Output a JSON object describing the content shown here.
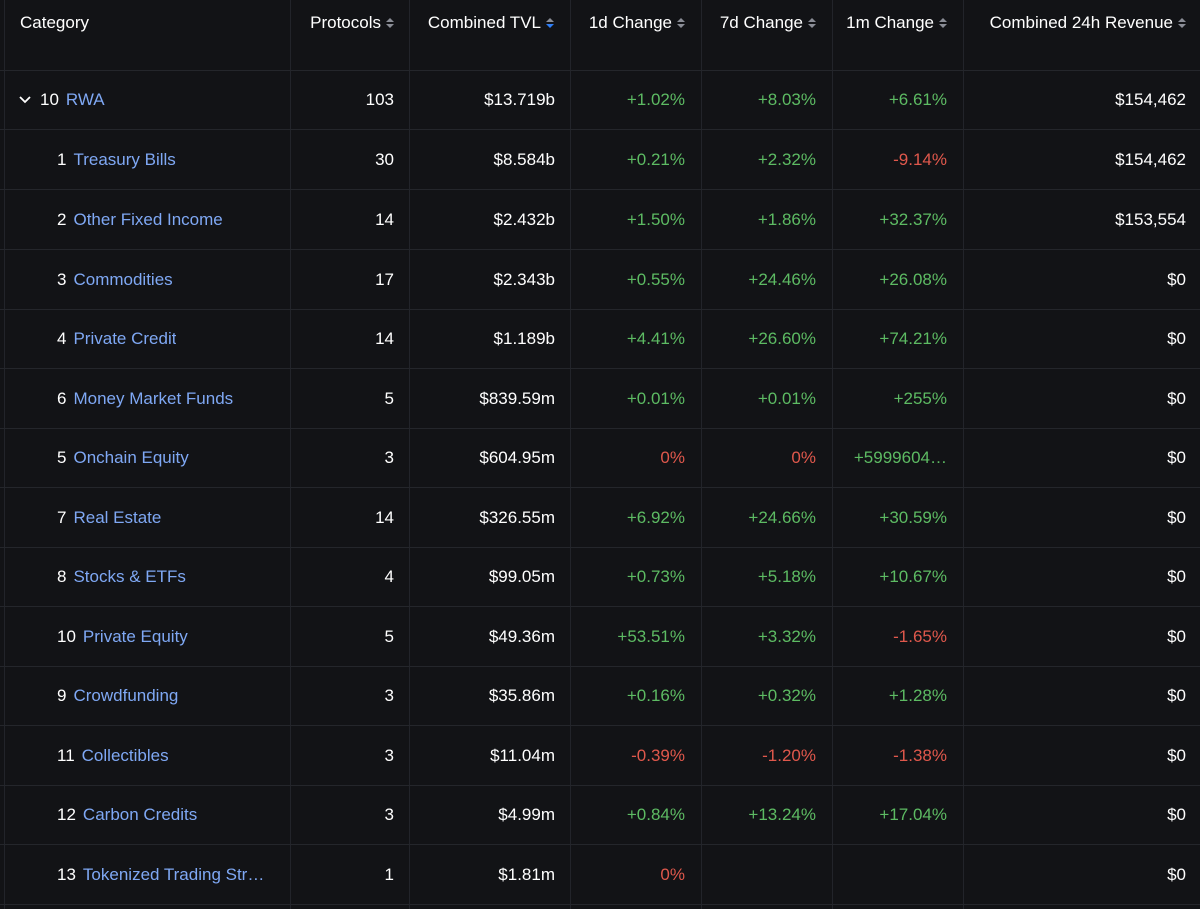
{
  "header": {
    "category": "Category",
    "protocols": "Protocols",
    "tvl": "Combined TVL",
    "d1": "1d Change",
    "d7": "7d Change",
    "m1": "1m Change",
    "revenue": "Combined 24h Revenue"
  },
  "parent": {
    "rank": "10",
    "name": "RWA",
    "protocols": "103",
    "tvl": "$13.719b",
    "d1": "+1.02%",
    "d7": "+8.03%",
    "m1": "+6.61%",
    "revenue": "$154,462"
  },
  "rows": [
    {
      "rank": "1",
      "name": "Treasury Bills",
      "protocols": "30",
      "tvl": "$8.584b",
      "d1": "+0.21%",
      "d7": "+2.32%",
      "m1": "-9.14%",
      "revenue": "$154,462"
    },
    {
      "rank": "2",
      "name": "Other Fixed Income",
      "protocols": "14",
      "tvl": "$2.432b",
      "d1": "+1.50%",
      "d7": "+1.86%",
      "m1": "+32.37%",
      "revenue": "$153,554"
    },
    {
      "rank": "3",
      "name": "Commodities",
      "protocols": "17",
      "tvl": "$2.343b",
      "d1": "+0.55%",
      "d7": "+24.46%",
      "m1": "+26.08%",
      "revenue": "$0"
    },
    {
      "rank": "4",
      "name": "Private Credit",
      "protocols": "14",
      "tvl": "$1.189b",
      "d1": "+4.41%",
      "d7": "+26.60%",
      "m1": "+74.21%",
      "revenue": "$0"
    },
    {
      "rank": "6",
      "name": "Money Market Funds",
      "protocols": "5",
      "tvl": "$839.59m",
      "d1": "+0.01%",
      "d7": "+0.01%",
      "m1": "+255%",
      "revenue": "$0"
    },
    {
      "rank": "5",
      "name": "Onchain Equity",
      "protocols": "3",
      "tvl": "$604.95m",
      "d1": "0%",
      "d7": "0%",
      "m1": "+5999604…",
      "revenue": "$0"
    },
    {
      "rank": "7",
      "name": "Real Estate",
      "protocols": "14",
      "tvl": "$326.55m",
      "d1": "+6.92%",
      "d7": "+24.66%",
      "m1": "+30.59%",
      "revenue": "$0"
    },
    {
      "rank": "8",
      "name": "Stocks & ETFs",
      "protocols": "4",
      "tvl": "$99.05m",
      "d1": "+0.73%",
      "d7": "+5.18%",
      "m1": "+10.67%",
      "revenue": "$0"
    },
    {
      "rank": "10",
      "name": "Private Equity",
      "protocols": "5",
      "tvl": "$49.36m",
      "d1": "+53.51%",
      "d7": "+3.32%",
      "m1": "-1.65%",
      "revenue": "$0"
    },
    {
      "rank": "9",
      "name": "Crowdfunding",
      "protocols": "3",
      "tvl": "$35.86m",
      "d1": "+0.16%",
      "d7": "+0.32%",
      "m1": "+1.28%",
      "revenue": "$0"
    },
    {
      "rank": "11",
      "name": "Collectibles",
      "protocols": "3",
      "tvl": "$11.04m",
      "d1": "-0.39%",
      "d7": "-1.20%",
      "m1": "-1.38%",
      "revenue": "$0"
    },
    {
      "rank": "12",
      "name": "Carbon Credits",
      "protocols": "3",
      "tvl": "$4.99m",
      "d1": "+0.84%",
      "d7": "+13.24%",
      "m1": "+17.04%",
      "revenue": "$0"
    },
    {
      "rank": "13",
      "name": "Tokenized Trading Str…",
      "protocols": "1",
      "tvl": "$1.81m",
      "d1": "0%",
      "d7": "",
      "m1": "",
      "revenue": "$0"
    }
  ],
  "colors": {
    "background": "#121316",
    "link": "#7fa8f4",
    "positive": "#5dbb63",
    "negative": "#e0584c",
    "sort_active": "#2f7ff7"
  },
  "icons": {
    "expand": "chevron-down-icon",
    "sort": "sort-arrows-icon"
  }
}
